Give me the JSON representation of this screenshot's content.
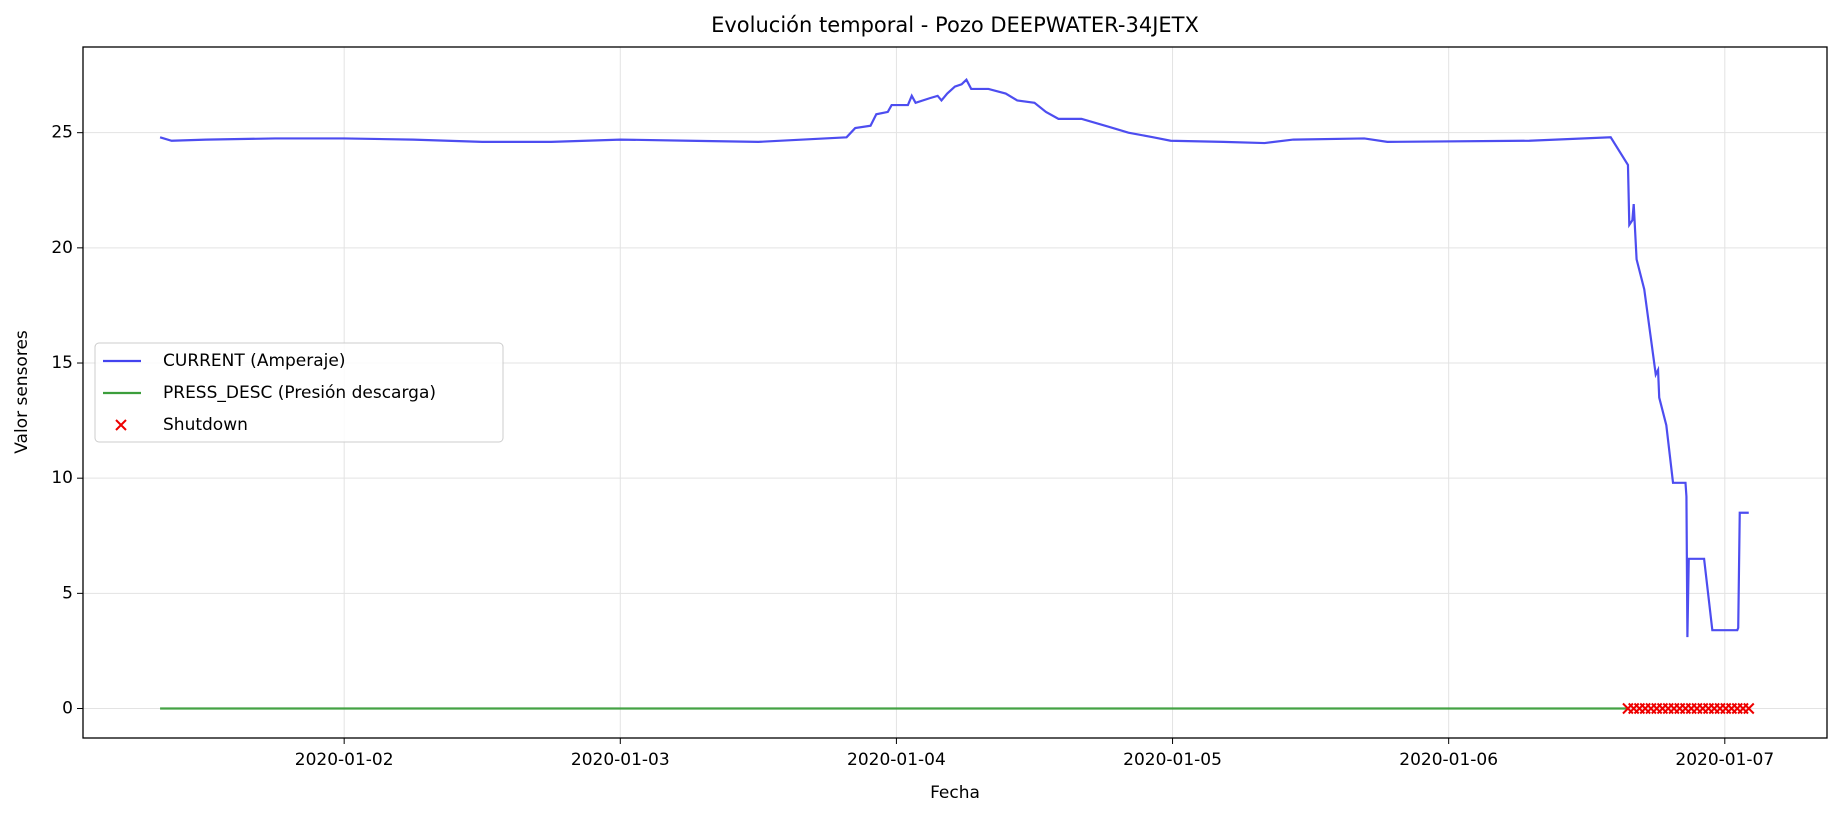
{
  "chart_data": {
    "type": "line",
    "title": "Evolución temporal - Pozo DEEPWATER-34JETX",
    "xlabel": "Fecha",
    "ylabel": "Valor sensores",
    "xlim": [
      "2020-01-01T01:18",
      "2020-01-07T08:53"
    ],
    "xticks": [
      "2020-01-02",
      "2020-01-03",
      "2020-01-04",
      "2020-01-05",
      "2020-01-06",
      "2020-01-07"
    ],
    "ylim": [
      -1.28,
      28.72
    ],
    "yticks": [
      0,
      5,
      10,
      15,
      20,
      25
    ],
    "grid": true,
    "legend": "center left",
    "series": [
      {
        "name": "CURRENT (Amperaje)",
        "type": "line",
        "color": "#4343ef",
        "x": [
          "2020-01-01T08:00",
          "2020-01-01T09:00",
          "2020-01-01T12:00",
          "2020-01-01T18:00",
          "2020-01-02T00:00",
          "2020-01-02T06:00",
          "2020-01-02T12:00",
          "2020-01-02T18:00",
          "2020-01-03T00:00",
          "2020-01-03T06:00",
          "2020-01-03T12:00",
          "2020-01-03T19:40",
          "2020-01-03T20:25",
          "2020-01-03T21:45",
          "2020-01-03T22:15",
          "2020-01-03T23:15",
          "2020-01-03T23:35",
          "2020-01-04T01:00",
          "2020-01-04T01:20",
          "2020-01-04T01:40",
          "2020-01-04T02:55",
          "2020-01-04T03:35",
          "2020-01-04T03:55",
          "2020-01-04T04:25",
          "2020-01-04T05:05",
          "2020-01-04T05:40",
          "2020-01-04T06:05",
          "2020-01-04T06:30",
          "2020-01-04T08:00",
          "2020-01-04T09:30",
          "2020-01-04T10:30",
          "2020-01-04T12:00",
          "2020-01-04T13:00",
          "2020-01-04T14:05",
          "2020-01-04T16:05",
          "2020-01-04T18:10",
          "2020-01-04T20:10",
          "2020-01-04T22:20",
          "2020-01-04T23:50",
          "2020-01-05T04:25",
          "2020-01-05T08:00",
          "2020-01-05T10:30",
          "2020-01-05T16:40",
          "2020-01-05T18:40",
          "2020-01-06T07:00",
          "2020-01-06T14:05",
          "2020-01-06T15:35",
          "2020-01-06T15:42",
          "2020-01-06T15:58",
          "2020-01-06T16:05",
          "2020-01-06T16:20",
          "2020-01-06T17:00",
          "2020-01-06T18:00",
          "2020-01-06T18:12",
          "2020-01-06T18:18",
          "2020-01-06T18:55",
          "2020-01-06T19:30",
          "2020-01-06T20:35",
          "2020-01-06T20:40",
          "2020-01-06T20:45",
          "2020-01-06T20:52",
          "2020-01-06T22:12",
          "2020-01-06T22:55",
          "2020-01-07T01:05",
          "2020-01-07T01:10",
          "2020-01-07T01:18",
          "2020-01-07T02:05"
        ],
        "values": [
          24.8,
          24.65,
          24.7,
          24.75,
          24.75,
          24.7,
          24.6,
          24.6,
          24.7,
          24.65,
          24.6,
          24.8,
          25.2,
          25.3,
          25.8,
          25.9,
          26.2,
          26.2,
          26.6,
          26.3,
          26.5,
          26.6,
          26.4,
          26.7,
          27.0,
          27.1,
          27.3,
          26.9,
          26.9,
          26.7,
          26.4,
          26.3,
          25.9,
          25.6,
          25.6,
          25.3,
          25.0,
          24.8,
          24.65,
          24.6,
          24.55,
          24.7,
          24.75,
          24.6,
          24.65,
          24.8,
          23.6,
          21.0,
          21.2,
          21.9,
          19.5,
          18.2,
          14.5,
          14.7,
          13.5,
          12.3,
          9.8,
          9.8,
          9.2,
          3.1,
          6.5,
          6.5,
          3.4,
          3.4,
          3.5,
          8.5,
          8.5
        ]
      },
      {
        "name": "PRESS_DESC (Presión descarga)",
        "type": "line",
        "color": "#3c9e3c",
        "x": [
          "2020-01-01T08:00",
          "2020-01-06T15:35"
        ],
        "values": [
          0,
          0
        ]
      },
      {
        "name": "Shutdown",
        "type": "scatter",
        "color": "#ee0000",
        "x": [
          "2020-01-06T15:35",
          "2020-01-06T16:05",
          "2020-01-06T16:35",
          "2020-01-06T17:05",
          "2020-01-06T17:35",
          "2020-01-06T18:05",
          "2020-01-06T18:35",
          "2020-01-06T19:05",
          "2020-01-06T19:35",
          "2020-01-06T20:05",
          "2020-01-06T20:35",
          "2020-01-06T21:05",
          "2020-01-06T21:35",
          "2020-01-06T22:05",
          "2020-01-06T22:35",
          "2020-01-06T23:05",
          "2020-01-06T23:35",
          "2020-01-07T00:05",
          "2020-01-07T00:35",
          "2020-01-07T01:05",
          "2020-01-07T01:35",
          "2020-01-07T02:05"
        ],
        "values": [
          0,
          0,
          0,
          0,
          0,
          0,
          0,
          0,
          0,
          0,
          0,
          0,
          0,
          0,
          0,
          0,
          0,
          0,
          0,
          0,
          0,
          0
        ]
      }
    ]
  }
}
